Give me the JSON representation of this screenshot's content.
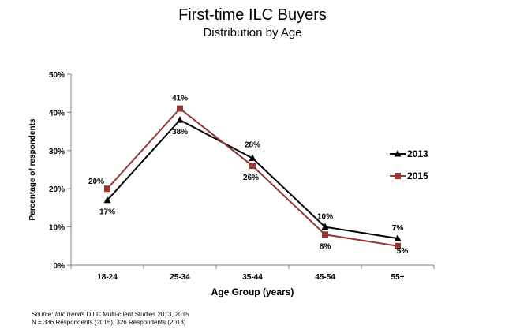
{
  "chart_data": {
    "type": "line",
    "title": "First-time ILC Buyers",
    "subtitle": "Distribution by Age",
    "xlabel": "Age Group (years)",
    "ylabel": "Percentage of respondents",
    "categories": [
      "18-24",
      "25-34",
      "35-44",
      "45-54",
      "55+"
    ],
    "ylim": [
      0,
      50
    ],
    "yticks": [
      "0%",
      "10%",
      "20%",
      "30%",
      "40%",
      "50%"
    ],
    "series": [
      {
        "name": "2013",
        "color": "#000000",
        "marker": "triangle",
        "values": [
          17,
          38,
          28,
          10,
          7
        ],
        "labels": [
          "17%",
          "38%",
          "28%",
          "10%",
          "7%"
        ]
      },
      {
        "name": "2015",
        "color": "#953735",
        "marker": "square",
        "values": [
          20,
          41,
          26,
          8,
          5
        ],
        "labels": [
          "20%",
          "41%",
          "26%",
          "8%",
          "5%"
        ]
      }
    ],
    "legend": "right",
    "grid": false
  },
  "source": {
    "prefix": "Source: ",
    "italic": "InfoTrends",
    "rest": " DILC Multi-client Studies 2013, 2015",
    "line2": "N = 336 Respondents (2015), 326 Respondents (2013)"
  }
}
